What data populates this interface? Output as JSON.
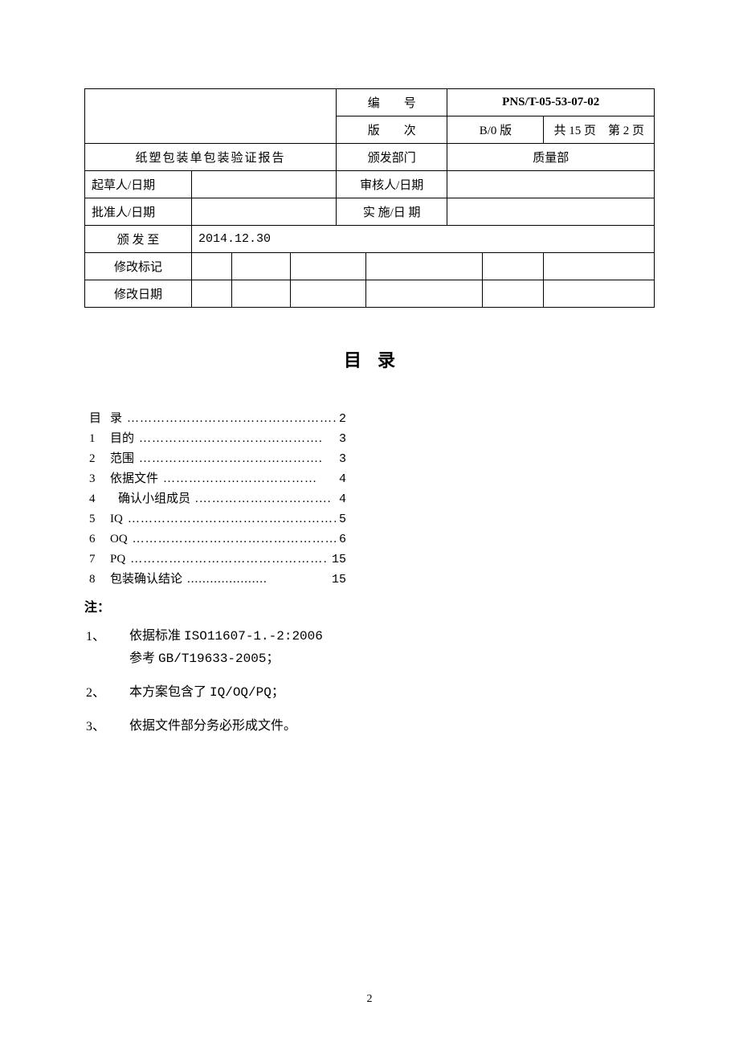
{
  "header": {
    "doc_title": "纸塑包装单包装验证报告",
    "number_label": "编　　号",
    "number_value": "PNS/T-05-53-07-02",
    "version_label": "版　　次",
    "version_value": "B/0 版",
    "pages_text": "共 15 页　第 2 页",
    "dept_label": "颁发部门",
    "dept_value": "质量部",
    "drafter_label": "起草人/日期",
    "drafter_value": "",
    "reviewer_label": "审核人/日期",
    "reviewer_value": "",
    "approver_label": "批准人/日期",
    "approver_value": "",
    "impl_label": "实 施/日 期",
    "impl_value": "",
    "issued_to_label": "颁 发 至",
    "issued_to_value": "2014.12.30",
    "rev_mark_label": "修改标记",
    "rev_date_label": "修改日期"
  },
  "toc": {
    "heading_1": "目",
    "heading_2": "录",
    "items": [
      {
        "num": "目",
        "label": "录",
        "page": "2",
        "dots": "……………………………………………."
      },
      {
        "num": "1",
        "label": "目的",
        "page": "3",
        "dots": "……………………………………."
      },
      {
        "num": "2",
        "label": "范围",
        "page": "3",
        "dots": "……………………………………."
      },
      {
        "num": "3",
        "label": "依据文件",
        "page": "4",
        "dots": "………………………………"
      },
      {
        "num": "4",
        "label": "确认小组成员",
        "page": "4",
        "dots": ".…………………………."
      },
      {
        "num": "5",
        "label": "IQ",
        "page": "5",
        "dots": "………………………………………………."
      },
      {
        "num": "6",
        "label": "OQ",
        "page": "6",
        "dots": "…………………………………………………"
      },
      {
        "num": "7",
        "label": "PQ",
        "page": "15",
        "dots": "…………………………………………………"
      },
      {
        "num": "8",
        "label": "包装确认结论",
        "page": "15",
        "dots": "....................."
      }
    ]
  },
  "notes": {
    "title": "注：",
    "items": [
      {
        "num": "1、",
        "text": "依据标准 ISO11607-1.-2:2006\n参考 GB/T19633-2005；"
      },
      {
        "num": "2、",
        "text": "本方案包含了 IQ/OQ/PQ；"
      },
      {
        "num": "3、",
        "text": "依据文件部分务必形成文件。"
      }
    ]
  },
  "footer": {
    "page_number": "2"
  }
}
